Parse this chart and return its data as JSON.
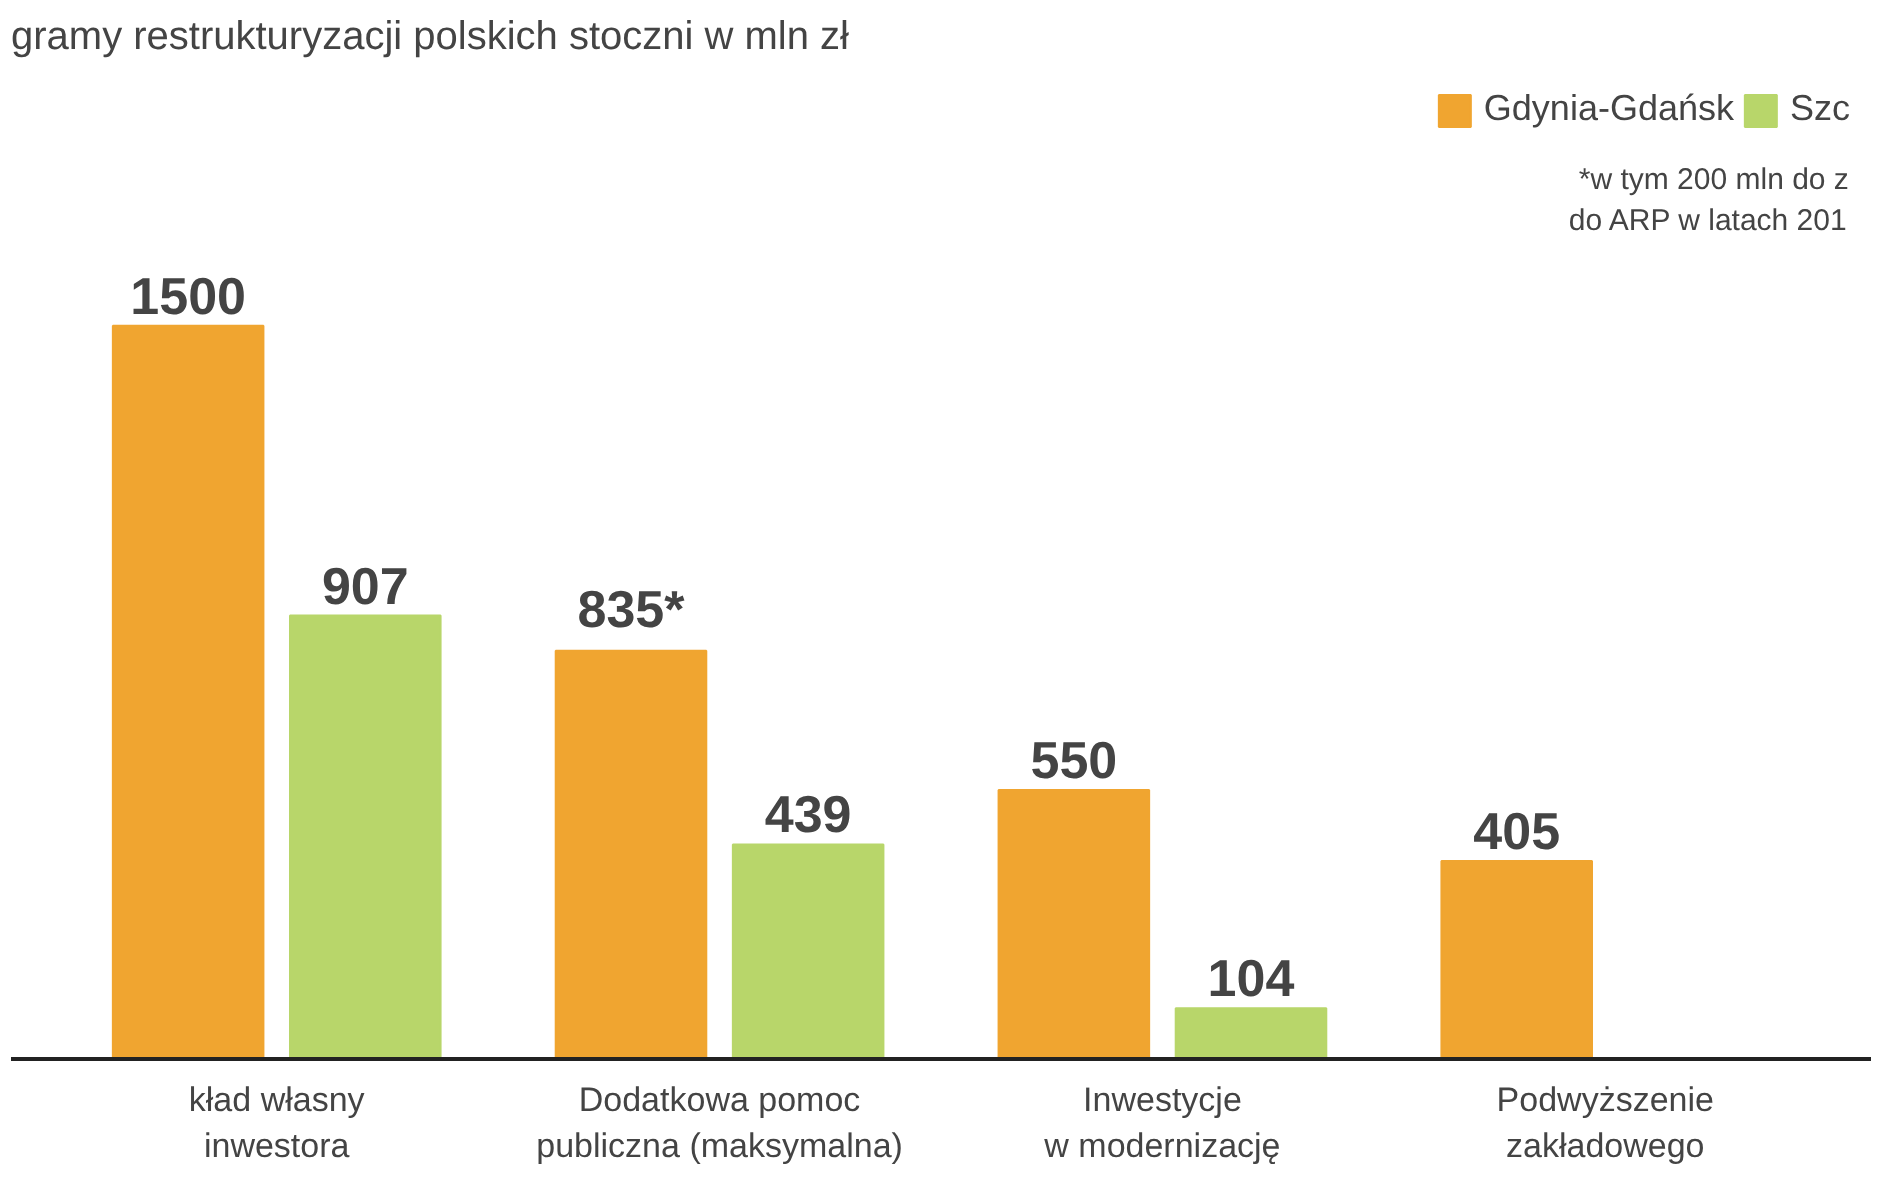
{
  "chart_data": {
    "type": "bar",
    "title": "gramy restrukturyzacji polskich stoczni w mln zł",
    "categories": [
      "kład własny\ninwestora",
      "Dodatkowa pomoc\npubliczna (maksymalna)",
      "Inwestycje\nw modernizację",
      "Podwyższenie\nzakładowego"
    ],
    "series": [
      {
        "name": "Gdynia-Gdańsk",
        "color": "#f0a530",
        "values": [
          1500,
          835,
          550,
          405
        ],
        "value_labels": [
          "1500",
          "835*",
          "550",
          "405"
        ]
      },
      {
        "name": "Szc",
        "color": "#b8d66a",
        "values": [
          907,
          439,
          104,
          null
        ],
        "value_labels": [
          "907",
          "439",
          "104",
          null
        ]
      }
    ],
    "annotations": [
      "*w tym 200 mln do z\ndo ARP w latach 201"
    ],
    "legend": "top right"
  }
}
